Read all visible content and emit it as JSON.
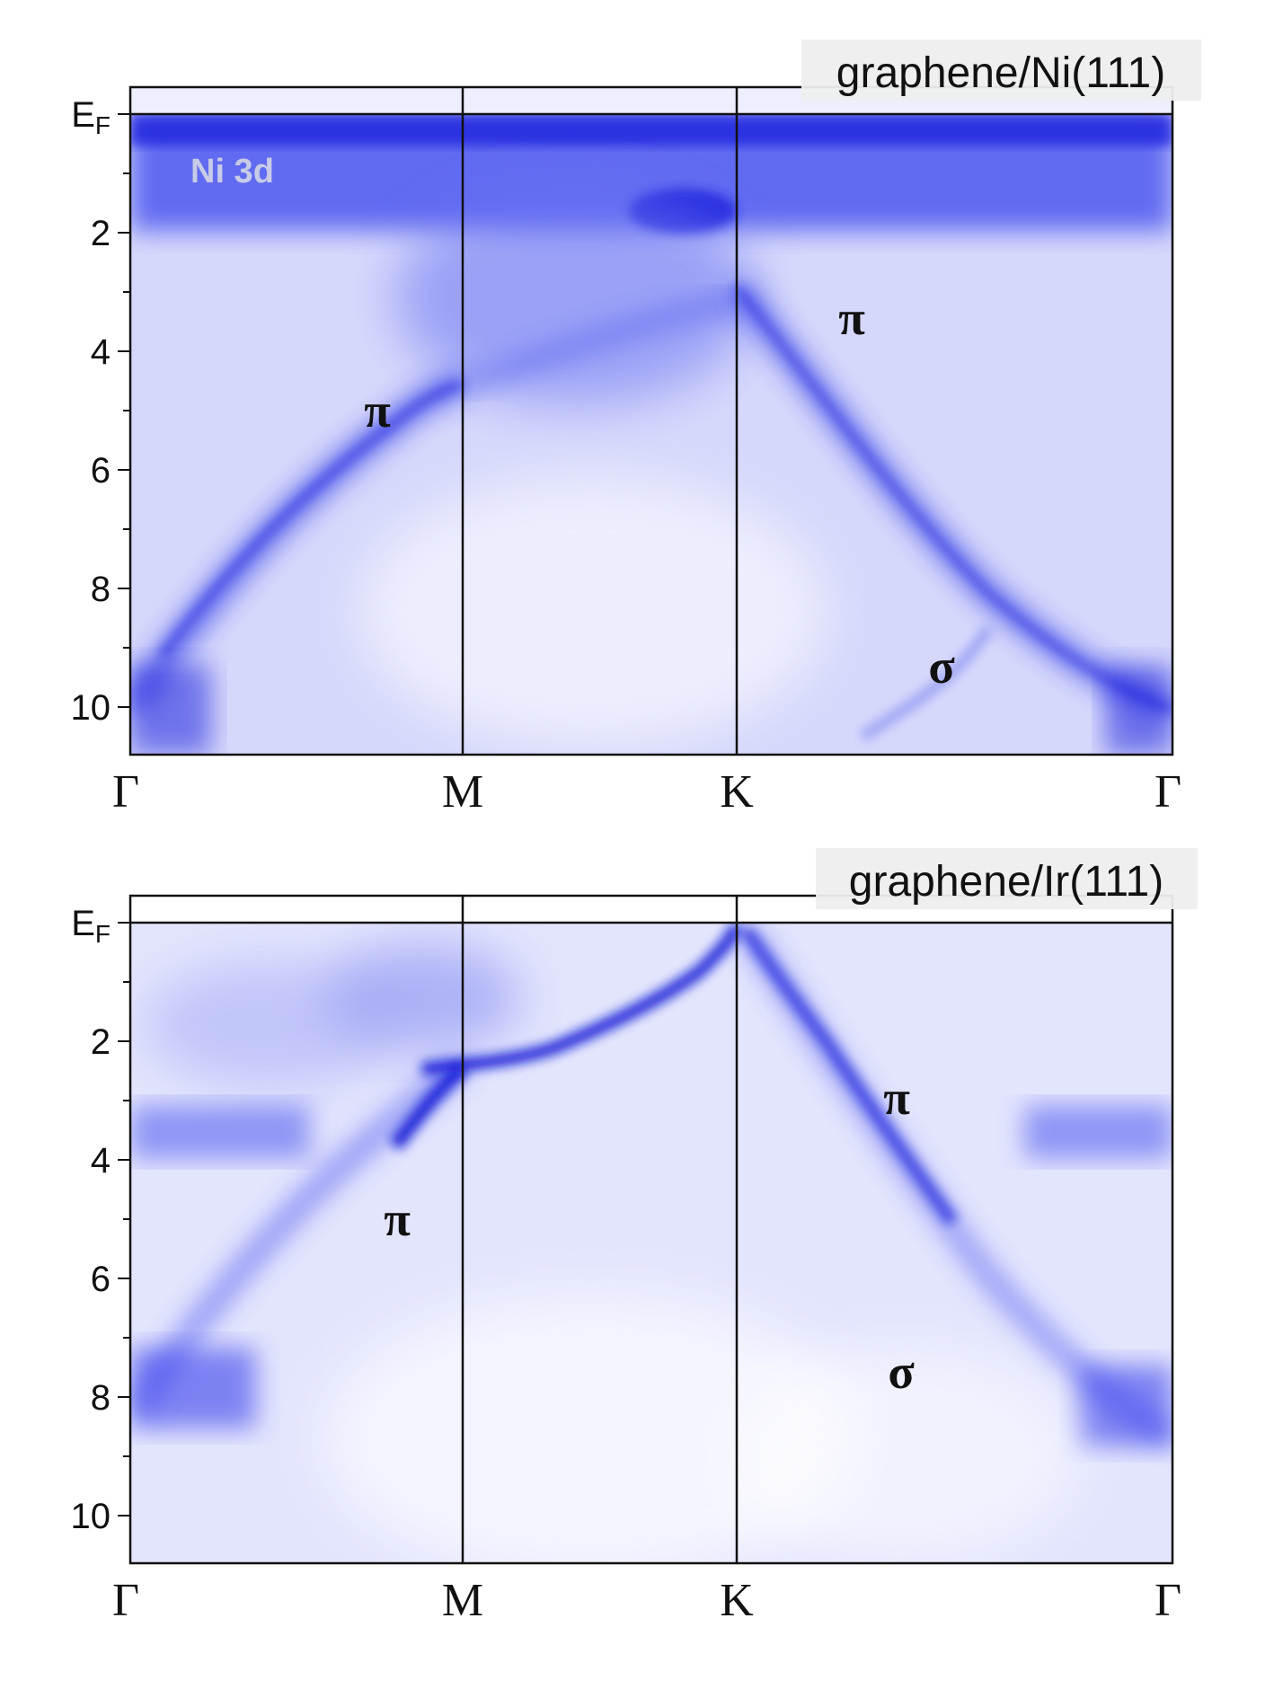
{
  "colors": {
    "band": "#1a1aff",
    "background": "#ffffff",
    "frame": "#111111",
    "tag_bg": "#eeeeee"
  },
  "chart_data": [
    {
      "type": "heatmap",
      "title": "graphene/Ni(111)",
      "xlabel": "",
      "ylabel": "",
      "x_ticks": [
        "Γ",
        "M",
        "K",
        "Γ"
      ],
      "y_ticks": [
        "EF",
        "2",
        "4",
        "6",
        "8",
        "10"
      ],
      "ylim": [
        0,
        10.8
      ],
      "y_inverted": true,
      "annotations": [
        {
          "text": "Ni 3d"
        },
        {
          "text": "π"
        },
        {
          "text": "π"
        },
        {
          "text": "σ"
        }
      ]
    },
    {
      "type": "heatmap",
      "title": "graphene/Ir(111)",
      "xlabel": "",
      "ylabel": "",
      "x_ticks": [
        "Γ",
        "M",
        "K",
        "Γ"
      ],
      "y_ticks": [
        "EF",
        "2",
        "4",
        "6",
        "8",
        "10"
      ],
      "ylim": [
        0,
        10.8
      ],
      "y_inverted": true,
      "annotations": [
        {
          "text": "π"
        },
        {
          "text": "π"
        },
        {
          "text": "σ"
        }
      ]
    }
  ]
}
